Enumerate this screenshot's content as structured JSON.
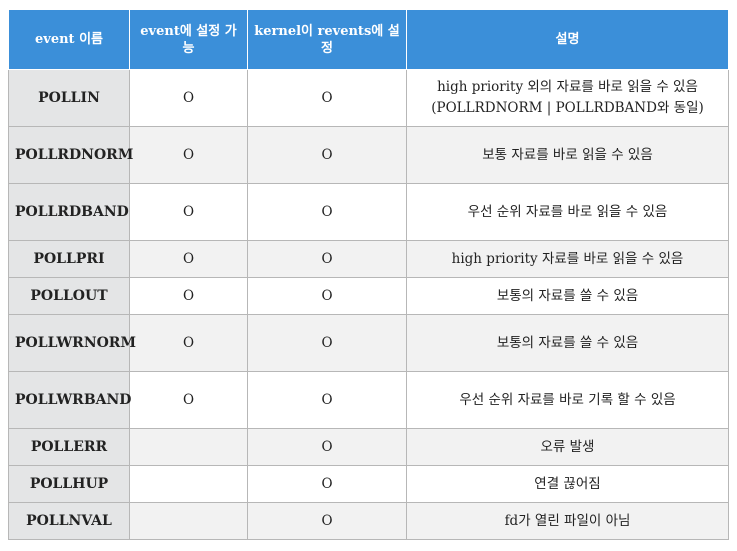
{
  "headers": [
    "event 이름",
    "event에 설정 가능",
    "kernel이 revents에 설정",
    "설명"
  ],
  "rows": [
    {
      "name": "POLLIN",
      "settable": "O",
      "revents": "O",
      "desc": "high priority 외의 자료를 바로 읽을 수 있음 (POLLRDNORM | POLLRDBAND와 동일)"
    },
    {
      "name": "POLLRDNORM",
      "settable": "O",
      "revents": "O",
      "desc": "보통 자료를 바로 읽을 수 있음"
    },
    {
      "name": "POLLRDBAND",
      "settable": "O",
      "revents": "O",
      "desc": "우선 순위 자료를 바로 읽을 수 있음"
    },
    {
      "name": "POLLPRI",
      "settable": "O",
      "revents": "O",
      "desc": "high priority 자료를 바로 읽을 수 있음"
    },
    {
      "name": "POLLOUT",
      "settable": "O",
      "revents": "O",
      "desc": "보통의 자료를 쓸 수 있음"
    },
    {
      "name": "POLLWRNORM",
      "settable": "O",
      "revents": "O",
      "desc": "보통의 자료를 쓸 수 있음"
    },
    {
      "name": "POLLWRBAND",
      "settable": "O",
      "revents": "O",
      "desc": "우선 순위 자료를 바로 기록 할 수 있음"
    },
    {
      "name": "POLLERR",
      "settable": "",
      "revents": "O",
      "desc": "오류 발생"
    },
    {
      "name": "POLLHUP",
      "settable": "",
      "revents": "O",
      "desc": "연결 끊어짐"
    },
    {
      "name": "POLLNVAL",
      "settable": "",
      "revents": "O",
      "desc": "fd가 열린 파일이 아님"
    }
  ]
}
